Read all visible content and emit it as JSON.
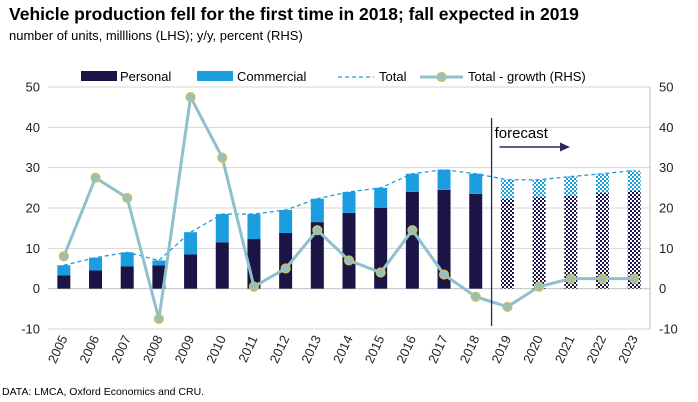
{
  "title": "Vehicle production fell for the first time in 2018; fall expected in 2019",
  "subtitle": "number of units, milllions (LHS); y/y, percent (RHS)",
  "source": "DATA: LMCA, Oxford Economics and CRU.",
  "colors": {
    "personal": "#1a1447",
    "commercial": "#1c9de0",
    "total": "#1c9de0",
    "growth_line": "#8ec1cd",
    "growth_marker_edge": "#cdbf5a",
    "forecast_divider": "#2a2a5a"
  },
  "chart_data": {
    "type": "bar",
    "stacked": true,
    "categories": [
      "2005",
      "2006",
      "2007",
      "2008",
      "2009",
      "2010",
      "2011",
      "2012",
      "2013",
      "2014",
      "2015",
      "2016",
      "2017",
      "2018",
      "2019",
      "2020",
      "2021",
      "2022",
      "2023"
    ],
    "forecast_from": "2019",
    "annotation": "forecast",
    "series": [
      {
        "name": "Personal",
        "kind": "bar",
        "axis": "left",
        "values": [
          3.3,
          4.5,
          5.5,
          5.8,
          8.5,
          11.5,
          12.3,
          13.8,
          16.5,
          18.8,
          20.0,
          24.0,
          24.5,
          23.5,
          22.3,
          22.8,
          23.0,
          23.8,
          24.3
        ]
      },
      {
        "name": "Commercial",
        "kind": "bar",
        "axis": "left",
        "values": [
          2.5,
          3.2,
          3.5,
          1.2,
          5.5,
          7.0,
          6.2,
          5.7,
          5.8,
          5.2,
          5.0,
          4.5,
          5.0,
          5.0,
          4.7,
          4.2,
          4.8,
          4.7,
          5.0
        ]
      },
      {
        "name": "Total",
        "kind": "line",
        "style": "dashed",
        "axis": "left",
        "values": [
          5.8,
          7.7,
          9.0,
          7.0,
          14.0,
          18.5,
          18.5,
          19.5,
          22.3,
          24.0,
          25.0,
          28.5,
          29.5,
          28.5,
          27.0,
          27.0,
          27.8,
          28.5,
          29.3
        ]
      },
      {
        "name": "Total - growth (RHS)",
        "kind": "line",
        "axis": "right",
        "values": [
          8,
          27.5,
          22.5,
          -7.5,
          47.5,
          32.5,
          0.5,
          5,
          14.5,
          7,
          4,
          14.5,
          3.5,
          -2,
          -4.5,
          0.5,
          2.5,
          2.5,
          2.5
        ]
      }
    ],
    "ylim": [
      -10,
      50
    ],
    "y2lim": [
      -10,
      50
    ],
    "yticks": [
      "-10",
      "0",
      "10",
      "20",
      "30",
      "40",
      "50"
    ],
    "y2ticks": [
      "-10",
      "0",
      "10",
      "20",
      "30",
      "40",
      "50"
    ],
    "grid": "horizontal",
    "legend_position": "top"
  }
}
